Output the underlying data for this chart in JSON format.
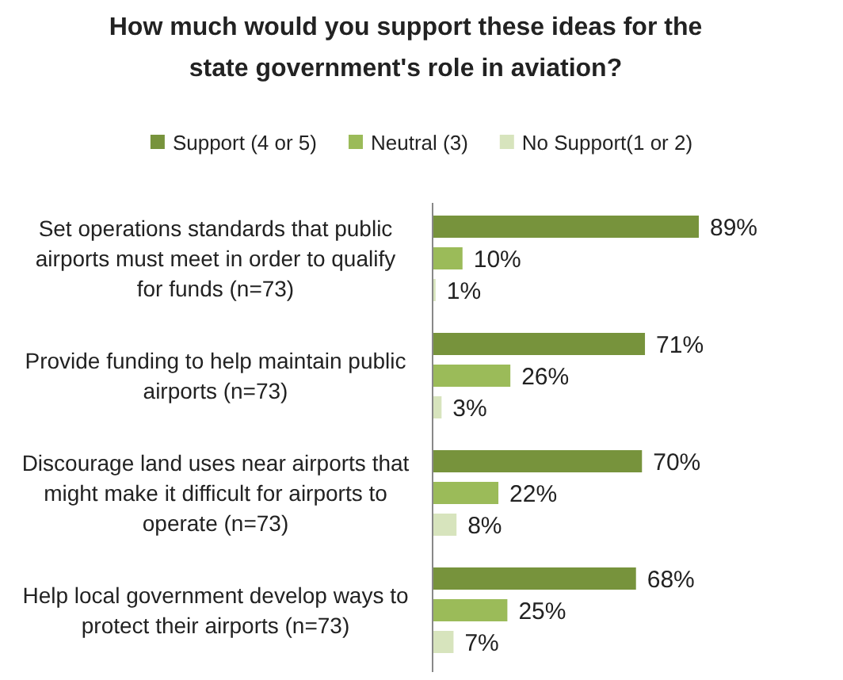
{
  "chart_data": {
    "type": "bar",
    "orientation": "horizontal",
    "title": "How much would you support these ideas for the state government's role in aviation?",
    "categories": [
      "Set operations standards that public airports must meet in order to qualify for funds (n=73)",
      "Provide funding to help maintain public airports (n=73)",
      "Discourage land uses near airports that might make it difficult for airports to operate (n=73)",
      "Help local government develop ways to protect their airports (n=73)"
    ],
    "series": [
      {
        "name": "Support (4 or 5)",
        "color": "#77933c",
        "values": [
          89,
          71,
          70,
          68
        ],
        "value_labels": [
          "89%",
          "71%",
          "70%",
          "68%"
        ]
      },
      {
        "name": "Neutral (3)",
        "color": "#9bbb59",
        "values": [
          10,
          26,
          22,
          25
        ],
        "value_labels": [
          "10%",
          "26%",
          "22%",
          "25%"
        ]
      },
      {
        "name": "No Support(1 or 2)",
        "color": "#d7e4bd",
        "values": [
          1,
          3,
          8,
          7
        ],
        "value_labels": [
          "1%",
          "3%",
          "8%",
          "7%"
        ]
      }
    ],
    "legend": "top",
    "grid": false
  }
}
